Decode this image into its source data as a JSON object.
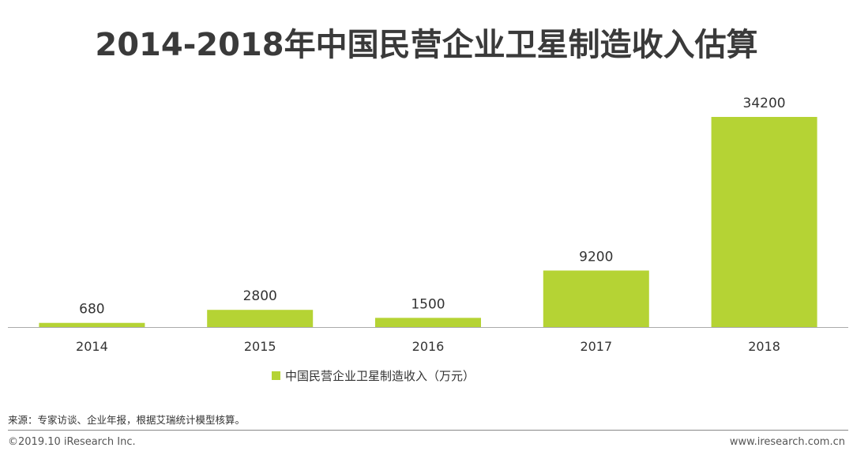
{
  "chart_data": {
    "type": "bar",
    "title": "2014-2018年中国民营企业卫星制造收入估算",
    "categories": [
      "2014",
      "2015",
      "2016",
      "2017",
      "2018"
    ],
    "series": [
      {
        "name": "中国民营企业卫星制造收入（万元）",
        "values": [
          680,
          2800,
          1500,
          9200,
          34200
        ],
        "color": "#b5d334"
      }
    ],
    "data_labels": [
      "680",
      "2800",
      "1500",
      "9200",
      "34200"
    ],
    "ylim": [
      0,
      34200
    ],
    "y_axis_visible": false,
    "grid": false,
    "legend_position": "bottom"
  },
  "source": "来源：专家访谈、企业年报，根据艾瑞统计模型核算。",
  "footer": {
    "copyright": "©2019.10 iResearch Inc.",
    "website": "www.iresearch.com.cn"
  },
  "colors": {
    "bar": "#b5d334",
    "axis": "#aaaaaa",
    "text": "#333333"
  }
}
